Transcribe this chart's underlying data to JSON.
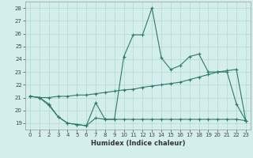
{
  "xlabel": "Humidex (Indice chaleur)",
  "x": [
    0,
    1,
    2,
    3,
    4,
    5,
    6,
    7,
    8,
    9,
    10,
    11,
    12,
    13,
    14,
    15,
    16,
    17,
    18,
    19,
    20,
    21,
    22,
    23
  ],
  "line1_y": [
    21.1,
    21.0,
    20.5,
    19.5,
    19.0,
    18.9,
    18.8,
    20.6,
    19.3,
    19.3,
    24.2,
    25.9,
    25.9,
    28.0,
    24.1,
    23.2,
    23.5,
    24.2,
    24.4,
    23.0,
    23.0,
    23.0,
    20.5,
    19.2
  ],
  "line2_y": [
    21.1,
    21.0,
    20.4,
    19.5,
    19.0,
    18.9,
    18.8,
    19.4,
    19.3,
    19.3,
    19.3,
    19.3,
    19.3,
    19.3,
    19.3,
    19.3,
    19.3,
    19.3,
    19.3,
    19.3,
    19.3,
    19.3,
    19.3,
    19.2
  ],
  "line3_y": [
    21.1,
    21.0,
    21.0,
    21.1,
    21.1,
    21.2,
    21.2,
    21.3,
    21.4,
    21.5,
    21.6,
    21.65,
    21.8,
    21.9,
    22.0,
    22.1,
    22.2,
    22.4,
    22.6,
    22.8,
    23.0,
    23.1,
    23.2,
    19.2
  ],
  "line_color": "#2d7a6a",
  "bg_color": "#d4eeec",
  "grid_color": "#b0d8d4",
  "ylim": [
    18.5,
    28.5
  ],
  "xlim": [
    -0.5,
    23.5
  ],
  "yticks": [
    19,
    20,
    21,
    22,
    23,
    24,
    25,
    26,
    27,
    28
  ],
  "xticks": [
    0,
    1,
    2,
    3,
    4,
    5,
    6,
    7,
    8,
    9,
    10,
    11,
    12,
    13,
    14,
    15,
    16,
    17,
    18,
    19,
    20,
    21,
    22,
    23
  ],
  "tick_fontsize": 5.0,
  "xlabel_fontsize": 6.0
}
